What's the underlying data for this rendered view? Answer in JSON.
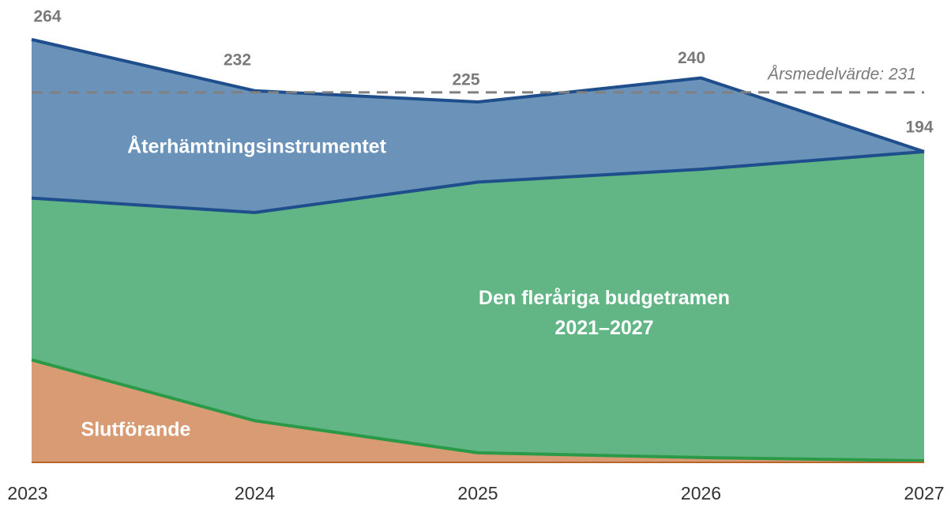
{
  "chart_data": {
    "type": "stacked_area",
    "x": [
      2023,
      2024,
      2025,
      2026,
      2027
    ],
    "xlim": [
      2023,
      2027
    ],
    "xticks": [
      2023,
      2024,
      2025,
      2026,
      2027
    ],
    "ylim": [
      0,
      264
    ],
    "series": [
      {
        "name": "Slutförande",
        "color": "#d99b73",
        "line_color": "#2a9a48",
        "values": [
          64,
          26,
          6,
          3,
          1
        ]
      },
      {
        "name": "Den fleråriga budgetramen 2021–2027",
        "color": "#62b585",
        "line_color": "#1f4e8c",
        "values": [
          101,
          130,
          169,
          180,
          193
        ]
      },
      {
        "name": "Återhämtningsinstrumentet",
        "color": "#6b93b9",
        "line_color": "#1f4e8c",
        "values": [
          99,
          76,
          50,
          57,
          0
        ]
      }
    ],
    "total_labels": [
      264,
      232,
      225,
      240,
      194
    ],
    "annotation": {
      "label": "Årsmedelvärde: 231",
      "value": 231
    }
  }
}
